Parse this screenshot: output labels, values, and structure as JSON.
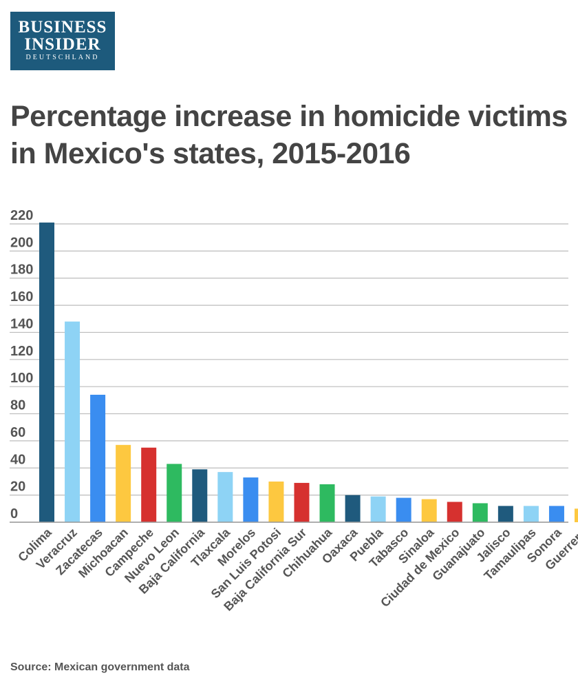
{
  "logo": {
    "line1": "BUSINESS",
    "line2": "INSIDER",
    "line3": "DEUTSCHLAND"
  },
  "header": {
    "title": "Percentage increase in homicide victims in Mexico's states, 2015-2016"
  },
  "footer": {
    "source": "Source: Mexican government data"
  },
  "chart_data": {
    "type": "bar",
    "title": "Percentage increase in homicide victims in Mexico's states, 2015-2016",
    "xlabel": "",
    "ylabel": "",
    "ylim": [
      0,
      220
    ],
    "yticks": [
      0,
      20,
      40,
      60,
      80,
      100,
      120,
      140,
      160,
      180,
      200,
      220
    ],
    "grid": true,
    "categories": [
      "Colima",
      "Veracruz",
      "Zacatecas",
      "Michoacan",
      "Campeche",
      "Nuevo Leon",
      "Baja California",
      "Tlaxcala",
      "Morelos",
      "San Luis Potosi",
      "Baja California Sur",
      "Chihuahua",
      "Oaxaca",
      "Puebla",
      "Tabasco",
      "Sinaloa",
      "Ciudad de Mexico",
      "Guanajuato",
      "Jalisco",
      "Tamaulipas",
      "Sonora",
      "Guerrero"
    ],
    "values": [
      221,
      148,
      94,
      57,
      55,
      43,
      39,
      37,
      33,
      30,
      29,
      28,
      20,
      19,
      18,
      17,
      15,
      14,
      12,
      12,
      12,
      10
    ],
    "colors": [
      "#1f5a7d",
      "#8ed3f5",
      "#3a8df0",
      "#fdc840",
      "#d6312f",
      "#2eba60",
      "#1f5a7d",
      "#8ed3f5",
      "#3a8df0",
      "#fdc840",
      "#d6312f",
      "#2eba60",
      "#1f5a7d",
      "#8ed3f5",
      "#3a8df0",
      "#fdc840",
      "#d6312f",
      "#2eba60",
      "#1f5a7d",
      "#8ed3f5",
      "#3a8df0",
      "#fdc840"
    ],
    "gridColor": "#bbbbbb"
  }
}
